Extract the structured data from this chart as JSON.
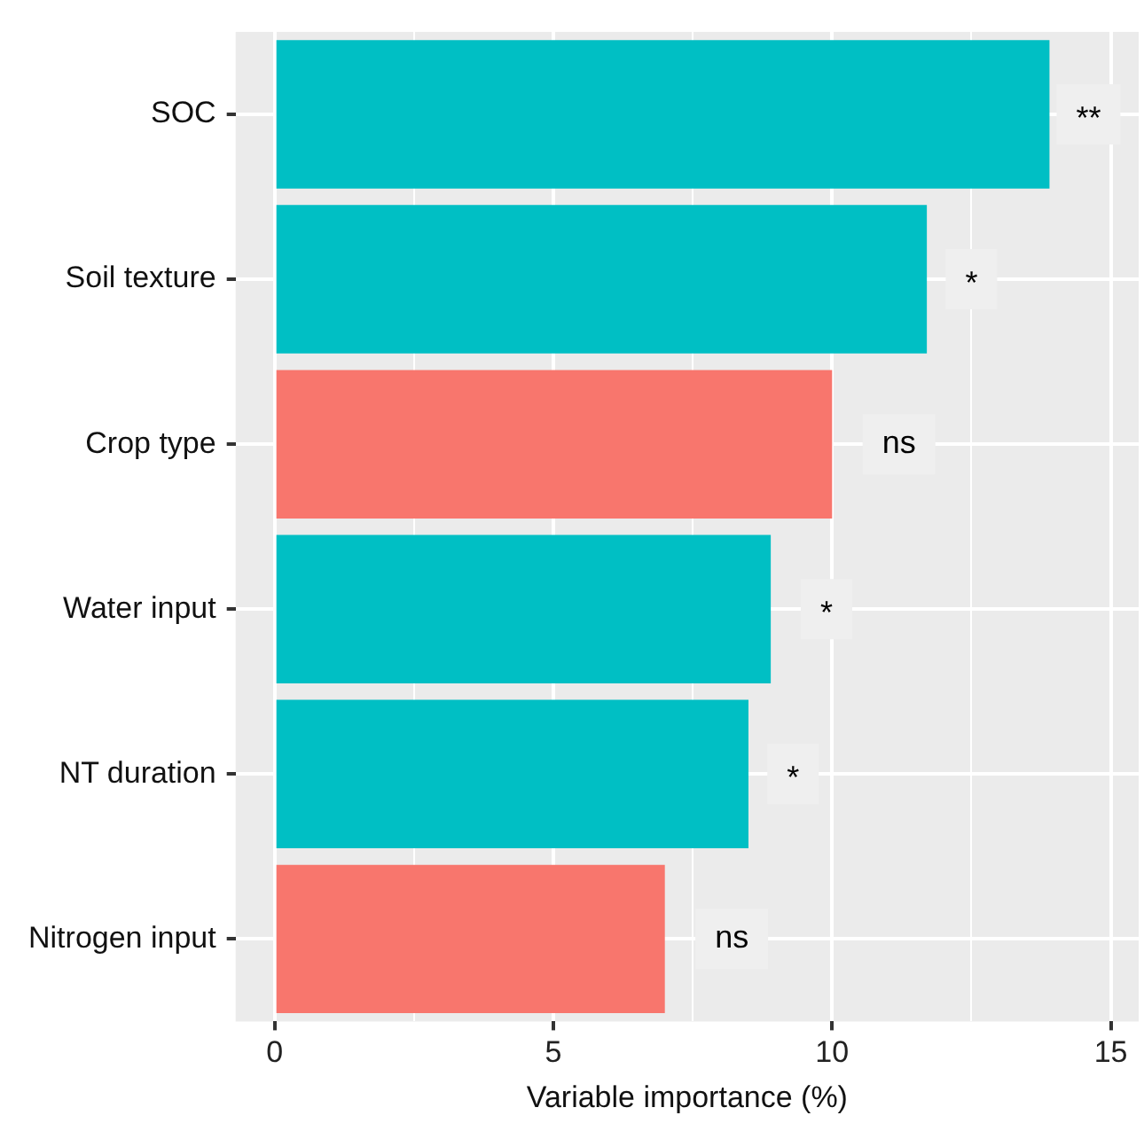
{
  "chart_data": {
    "type": "bar",
    "orientation": "horizontal",
    "xlabel": "Variable importance (%)",
    "categories": [
      "SOC",
      "Soil texture",
      "Crop type",
      "Water input",
      "NT duration",
      "Nitrogen input"
    ],
    "values": [
      13.9,
      11.7,
      10.0,
      8.9,
      8.5,
      7.0
    ],
    "colors": [
      "#00bfc4",
      "#00bfc4",
      "#f8766d",
      "#00bfc4",
      "#00bfc4",
      "#f8766d"
    ],
    "xlim": [
      -0.7,
      15.5
    ],
    "xticks": [
      0,
      {
        "value": 2.5,
        "label": null
      },
      5,
      {
        "value": 7.5,
        "label": null
      },
      10,
      {
        "value": 12.5,
        "label": null
      },
      15
    ],
    "grid": true,
    "legend": false,
    "annotations": [
      {
        "text": "**",
        "x": 14.6,
        "y": "SOC"
      },
      {
        "text": "*",
        "x": 12.5,
        "y": "Soil texture"
      },
      {
        "text": "ns",
        "x": 11.2,
        "y": "Crop type"
      },
      {
        "text": "*",
        "x": 9.9,
        "y": "Water input"
      },
      {
        "text": "*",
        "x": 9.3,
        "y": "NT duration"
      },
      {
        "text": "ns",
        "x": 8.2,
        "y": "Nitrogen input"
      }
    ]
  }
}
